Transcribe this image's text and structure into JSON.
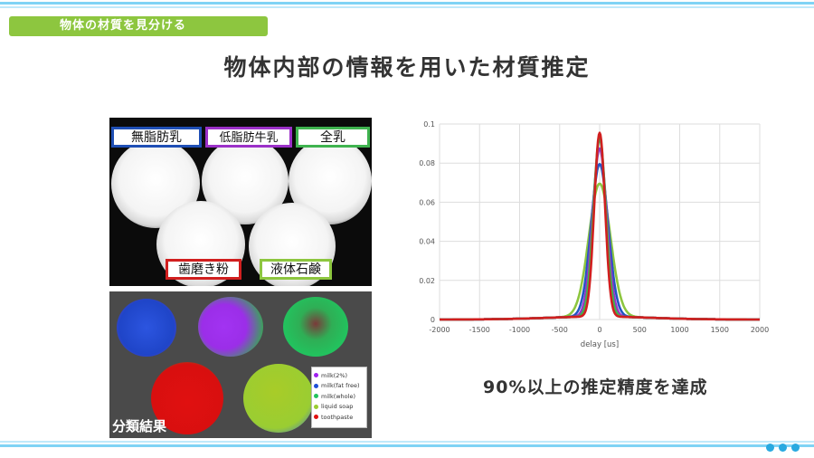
{
  "section_tag": "物体の材質を見分ける",
  "title": "物体内部の情報を用いた材質推定",
  "photo": {
    "labels": [
      {
        "text": "無脂肪乳",
        "color": "#1f4fb5"
      },
      {
        "text": "低脂肪牛乳",
        "color": "#9b30c8"
      },
      {
        "text": "全乳",
        "color": "#3fb34f"
      },
      {
        "text": "歯磨き粉",
        "color": "#d11f1f"
      },
      {
        "text": "液体石鹸",
        "color": "#8dc63f"
      }
    ]
  },
  "classification": {
    "label": "分類結果",
    "legend": [
      {
        "label": "milk(2%)",
        "color": "#a020f0"
      },
      {
        "label": "milk(fat free)",
        "color": "#1f4fd8"
      },
      {
        "label": "milk(whole)",
        "color": "#22c35e"
      },
      {
        "label": "liquid soap",
        "color": "#9acd32"
      },
      {
        "label": "toothpaste",
        "color": "#e01010"
      }
    ]
  },
  "chart_data": {
    "type": "line",
    "xlabel": "delay [us]",
    "xlim": [
      -2000,
      2000
    ],
    "ylim": [
      0,
      0.1
    ],
    "xticks": [
      -2000,
      -1500,
      -1000,
      -500,
      0,
      500,
      1000,
      1500,
      2000
    ],
    "yticks": [
      0,
      0.02,
      0.04,
      0.06,
      0.08,
      0.1
    ],
    "grid": true,
    "series": [
      {
        "color": "#8dc63f",
        "peak": 0.068,
        "width": 190
      },
      {
        "color": "#2255c4",
        "peak": 0.078,
        "width": 150
      },
      {
        "color": "#9b30c8",
        "peak": 0.086,
        "width": 125
      },
      {
        "color": "#3fb34f",
        "peak": 0.091,
        "width": 110
      },
      {
        "color": "#d11f1f",
        "peak": 0.094,
        "width": 95
      }
    ]
  },
  "achievement": "90%以上の推定精度を達成"
}
